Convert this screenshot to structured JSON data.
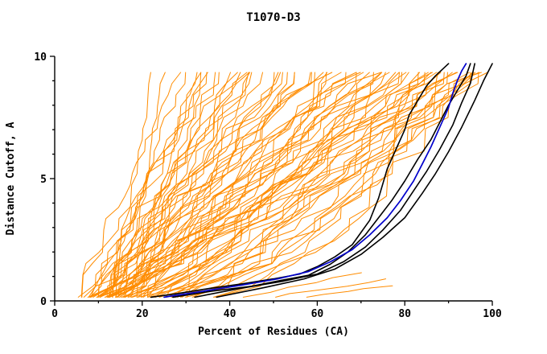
{
  "chart_data": {
    "type": "line",
    "title": "T1070-D3",
    "xlabel": "Percent of Residues (CA)",
    "ylabel": "Distance Cutoff, A",
    "xlim": [
      0,
      100
    ],
    "ylim": [
      0,
      10
    ],
    "x_ticks": [
      0,
      20,
      40,
      60,
      80,
      100
    ],
    "y_ticks": [
      0,
      5,
      10
    ],
    "x_minor_step": 10,
    "y_minor_step": 1,
    "grid": false,
    "legend": "none",
    "colors": {
      "ensemble": "#ff8c00",
      "highlight": "#0000cc",
      "reference": "#000000",
      "axis": "#000000",
      "background": "#ffffff"
    },
    "ensemble_spec_format": "[x_percent_at_bottom, x_percent_at_top, shape_exponent, optional_top_y]",
    "ensemble_curves": [
      [
        13,
        22,
        1.1
      ],
      [
        15,
        25,
        0.9
      ],
      [
        12,
        30,
        1.2
      ],
      [
        16,
        32,
        1.0
      ],
      [
        18,
        34,
        0.8
      ],
      [
        8,
        36,
        1.0
      ],
      [
        10,
        38,
        0.9
      ],
      [
        12,
        40,
        1.1
      ],
      [
        9,
        42,
        0.8
      ],
      [
        14,
        44,
        1.0
      ],
      [
        11,
        46,
        1.2
      ],
      [
        13,
        48,
        0.9
      ],
      [
        7,
        50,
        1.0
      ],
      [
        15,
        52,
        0.85
      ],
      [
        10,
        54,
        1.1
      ],
      [
        8,
        56,
        0.95
      ],
      [
        12,
        58,
        1.05
      ],
      [
        9,
        60,
        0.9
      ],
      [
        14,
        62,
        1.1
      ],
      [
        10,
        64,
        0.8
      ],
      [
        16,
        66,
        1.0
      ],
      [
        11,
        68,
        0.9
      ],
      [
        13,
        70,
        1.15
      ],
      [
        9,
        72,
        0.85
      ],
      [
        15,
        74,
        1.0
      ],
      [
        10,
        76,
        0.9
      ],
      [
        17,
        78,
        1.05
      ],
      [
        12,
        80,
        0.8
      ],
      [
        18,
        82,
        0.95
      ],
      [
        13,
        84,
        1.1
      ],
      [
        20,
        85,
        0.9
      ],
      [
        11,
        86,
        0.85
      ],
      [
        16,
        88,
        1.0
      ],
      [
        12,
        90,
        0.9
      ],
      [
        19,
        92,
        0.8
      ],
      [
        14,
        94,
        0.95
      ],
      [
        22,
        96,
        0.85
      ],
      [
        17,
        98,
        0.9
      ],
      [
        25,
        100,
        0.8
      ],
      [
        28,
        100,
        0.9
      ],
      [
        21,
        97,
        1.0
      ],
      [
        6,
        45,
        0.7
      ],
      [
        7,
        55,
        0.65
      ],
      [
        8,
        65,
        0.6
      ],
      [
        9,
        75,
        0.55
      ],
      [
        10,
        85,
        0.5
      ],
      [
        12,
        92,
        0.45
      ],
      [
        15,
        95,
        0.4
      ],
      [
        18,
        90,
        0.5
      ],
      [
        20,
        95,
        0.55
      ],
      [
        6,
        40,
        1.3
      ],
      [
        8,
        48,
        1.25
      ],
      [
        10,
        56,
        1.2
      ],
      [
        12,
        63,
        1.3
      ],
      [
        14,
        70,
        1.25
      ],
      [
        16,
        77,
        1.2
      ],
      [
        18,
        83,
        1.15
      ],
      [
        20,
        88,
        1.1
      ],
      [
        24,
        93,
        1.05
      ],
      [
        26,
        98,
        0.95
      ],
      [
        7,
        35,
        0.9
      ],
      [
        9,
        44,
        1.05
      ],
      [
        11,
        52,
        0.95
      ],
      [
        13,
        60,
        1.05
      ],
      [
        15,
        68,
        0.95
      ],
      [
        17,
        75,
        1.05
      ],
      [
        19,
        81,
        0.95
      ],
      [
        21,
        87,
        1.05
      ],
      [
        23,
        91,
        0.95
      ],
      [
        27,
        99,
        0.9
      ],
      [
        5,
        28,
        1.0
      ],
      [
        6,
        33,
        0.85
      ],
      [
        38,
        70,
        1.0,
        1.2
      ],
      [
        44,
        76,
        1.0,
        0.9
      ],
      [
        50,
        80,
        1.0,
        0.7
      ],
      [
        8,
        60,
        0.35
      ],
      [
        10,
        70,
        0.3
      ],
      [
        12,
        78,
        0.32
      ],
      [
        14,
        84,
        0.3
      ],
      [
        16,
        88,
        0.33
      ]
    ],
    "black_series": [
      {
        "name": "reference-1",
        "points": [
          [
            22,
            0.15
          ],
          [
            28,
            0.3
          ],
          [
            35,
            0.5
          ],
          [
            43,
            0.7
          ],
          [
            50,
            0.9
          ],
          [
            56,
            1.1
          ],
          [
            60,
            1.4
          ],
          [
            64,
            1.8
          ],
          [
            68,
            2.3
          ],
          [
            70,
            2.8
          ],
          [
            72,
            3.3
          ],
          [
            74,
            4.2
          ],
          [
            75,
            4.8
          ],
          [
            76,
            5.4
          ],
          [
            78,
            6.2
          ],
          [
            80,
            7.0
          ],
          [
            81,
            7.6
          ],
          [
            83,
            8.2
          ],
          [
            85,
            8.8
          ],
          [
            87,
            9.2
          ],
          [
            90,
            9.7
          ]
        ]
      },
      {
        "name": "reference-2",
        "points": [
          [
            27,
            0.15
          ],
          [
            36,
            0.4
          ],
          [
            45,
            0.6
          ],
          [
            52,
            0.85
          ],
          [
            58,
            1.05
          ],
          [
            63,
            1.5
          ],
          [
            67,
            2.0
          ],
          [
            71,
            2.7
          ],
          [
            74,
            3.4
          ],
          [
            77,
            4.1
          ],
          [
            80,
            4.9
          ],
          [
            83,
            5.8
          ],
          [
            86,
            6.6
          ],
          [
            88,
            7.3
          ],
          [
            90,
            8.0
          ],
          [
            92,
            8.6
          ],
          [
            94,
            9.2
          ],
          [
            95,
            9.7
          ]
        ]
      },
      {
        "name": "reference-3",
        "points": [
          [
            32,
            0.15
          ],
          [
            42,
            0.5
          ],
          [
            52,
            0.8
          ],
          [
            60,
            1.1
          ],
          [
            66,
            1.6
          ],
          [
            71,
            2.2
          ],
          [
            75,
            2.9
          ],
          [
            79,
            3.7
          ],
          [
            82,
            4.5
          ],
          [
            85,
            5.3
          ],
          [
            88,
            6.2
          ],
          [
            91,
            7.2
          ],
          [
            93,
            8.1
          ],
          [
            95,
            8.9
          ],
          [
            96,
            9.7
          ]
        ]
      },
      {
        "name": "reference-4",
        "points": [
          [
            37,
            0.15
          ],
          [
            48,
            0.55
          ],
          [
            57,
            0.9
          ],
          [
            64,
            1.3
          ],
          [
            70,
            1.9
          ],
          [
            75,
            2.6
          ],
          [
            80,
            3.4
          ],
          [
            84,
            4.4
          ],
          [
            87,
            5.2
          ],
          [
            90,
            6.1
          ],
          [
            93,
            7.1
          ],
          [
            96,
            8.2
          ],
          [
            98,
            9.0
          ],
          [
            100,
            9.7
          ]
        ]
      }
    ],
    "blue_series": {
      "name": "highlight",
      "points": [
        [
          25,
          0.15
        ],
        [
          34,
          0.4
        ],
        [
          43,
          0.65
        ],
        [
          51,
          0.9
        ],
        [
          58,
          1.2
        ],
        [
          63,
          1.6
        ],
        [
          68,
          2.1
        ],
        [
          72,
          2.7
        ],
        [
          76,
          3.4
        ],
        [
          79,
          4.1
        ],
        [
          82,
          4.9
        ],
        [
          84,
          5.6
        ],
        [
          86,
          6.3
        ],
        [
          88,
          7.1
        ],
        [
          90,
          7.9
        ],
        [
          91,
          8.5
        ],
        [
          92,
          9.0
        ],
        [
          93,
          9.4
        ],
        [
          94,
          9.7
        ]
      ]
    }
  }
}
